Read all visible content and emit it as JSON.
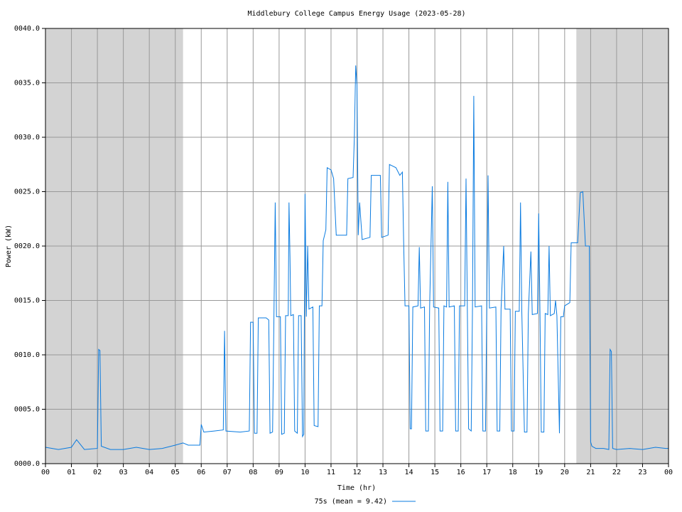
{
  "chart_data": {
    "type": "line",
    "title": "Middlebury College Campus Energy Usage (2023-05-28)",
    "xlabel": "Time (hr)",
    "ylabel": "Power (kW)",
    "xlim": [
      0,
      24
    ],
    "ylim": [
      0,
      40
    ],
    "xticks": [
      {
        "value": 0,
        "label": "00"
      },
      {
        "value": 1,
        "label": "01"
      },
      {
        "value": 2,
        "label": "02"
      },
      {
        "value": 3,
        "label": "03"
      },
      {
        "value": 4,
        "label": "04"
      },
      {
        "value": 5,
        "label": "05"
      },
      {
        "value": 6,
        "label": "06"
      },
      {
        "value": 7,
        "label": "07"
      },
      {
        "value": 8,
        "label": "08"
      },
      {
        "value": 9,
        "label": "09"
      },
      10,
      11,
      12,
      13,
      14,
      15,
      16,
      17,
      18,
      19,
      20,
      21,
      22,
      23,
      {
        "value": 24,
        "label": "00"
      }
    ],
    "yticks": [
      {
        "value": 0,
        "label": "0000.0"
      },
      {
        "value": 5,
        "label": "0005.0"
      },
      {
        "value": 10,
        "label": "0010.0"
      },
      {
        "value": 15,
        "label": "0015.0"
      },
      {
        "value": 20,
        "label": "0020.0"
      },
      {
        "value": 25,
        "label": "0025.0"
      },
      {
        "value": 30,
        "label": "0030.0"
      },
      {
        "value": 35,
        "label": "0035.0"
      },
      {
        "value": 40,
        "label": "0040.0"
      }
    ],
    "grid": true,
    "shaded_regions": [
      [
        0,
        5.3
      ],
      [
        20.45,
        24
      ]
    ],
    "shade_color": "#d3d3d3",
    "legend": "bottom",
    "x": [
      0,
      0.5,
      1.0,
      1.2,
      1.5,
      2.0,
      2.05,
      2.1,
      2.15,
      2.5,
      3,
      3.5,
      4,
      4.5,
      5,
      5.3,
      5.5,
      5.95,
      6.0,
      6.1,
      6.5,
      6.85,
      6.9,
      6.95,
      7.5,
      7.85,
      7.9,
      8.0,
      8.05,
      8.15,
      8.2,
      8.5,
      8.6,
      8.65,
      8.75,
      8.8,
      8.85,
      8.9,
      9.05,
      9.1,
      9.2,
      9.25,
      9.35,
      9.38,
      9.42,
      9.45,
      9.55,
      9.6,
      9.7,
      9.75,
      9.85,
      9.9,
      9.95,
      10.0,
      10.05,
      10.1,
      10.15,
      10.3,
      10.35,
      10.5,
      10.55,
      10.65,
      10.7,
      10.8,
      10.85,
      11.0,
      11.1,
      11.2,
      11.6,
      11.65,
      11.85,
      11.9,
      11.95,
      12.0,
      12.05,
      12.1,
      12.2,
      12.5,
      12.55,
      12.9,
      12.95,
      13.2,
      13.25,
      13.5,
      13.65,
      13.75,
      13.8,
      13.85,
      14.0,
      14.05,
      14.1,
      14.15,
      14.35,
      14.4,
      14.45,
      14.6,
      14.65,
      14.75,
      14.8,
      14.9,
      14.95,
      15.15,
      15.2,
      15.3,
      15.35,
      15.45,
      15.5,
      15.55,
      15.75,
      15.8,
      15.9,
      15.95,
      16.15,
      16.2,
      16.25,
      16.3,
      16.4,
      16.45,
      16.5,
      16.55,
      16.8,
      16.85,
      16.95,
      17.0,
      17.05,
      17.1,
      17.35,
      17.4,
      17.5,
      17.55,
      17.65,
      17.7,
      17.9,
      17.95,
      18.05,
      18.1,
      18.25,
      18.3,
      18.35,
      18.45,
      18.55,
      18.6,
      18.7,
      18.75,
      18.95,
      19.0,
      19.05,
      19.1,
      19.2,
      19.25,
      19.35,
      19.4,
      19.45,
      19.6,
      19.65,
      19.7,
      19.8,
      19.85,
      19.95,
      20.0,
      20.2,
      20.25,
      20.5,
      20.6,
      20.7,
      20.8,
      20.95,
      21.0,
      21.05,
      21.2,
      21.5,
      21.7,
      21.75,
      21.8,
      21.85,
      22.0,
      22.5,
      23,
      23.5,
      23.9,
      24
    ],
    "series": [
      {
        "name": "75s (mean = 9.42)",
        "color": "#0a7be0",
        "values": [
          1.5,
          1.3,
          1.5,
          2.2,
          1.3,
          1.4,
          10.5,
          10.4,
          1.6,
          1.3,
          1.3,
          1.5,
          1.3,
          1.4,
          1.7,
          1.9,
          1.7,
          1.7,
          3.6,
          2.9,
          3.0,
          3.1,
          12.2,
          3.0,
          2.9,
          3.0,
          13.0,
          13.0,
          2.8,
          2.8,
          13.4,
          13.4,
          13.2,
          2.8,
          2.9,
          13.5,
          24.0,
          13.5,
          13.5,
          2.7,
          2.8,
          13.6,
          13.6,
          24.0,
          19.0,
          13.6,
          13.7,
          3.0,
          2.8,
          13.6,
          13.6,
          2.5,
          2.7,
          24.8,
          13.5,
          20.0,
          14.2,
          14.4,
          3.5,
          3.4,
          14.5,
          14.5,
          20.5,
          21.5,
          27.2,
          27.0,
          26.2,
          21.0,
          21.0,
          26.2,
          26.3,
          30.0,
          36.6,
          34.8,
          21.0,
          24.0,
          20.6,
          20.8,
          26.5,
          26.5,
          20.8,
          21.0,
          27.5,
          27.2,
          26.5,
          26.8,
          20.0,
          14.5,
          14.5,
          3.2,
          3.2,
          14.4,
          14.5,
          19.9,
          14.3,
          14.4,
          3.0,
          3.0,
          14.5,
          25.5,
          14.4,
          14.3,
          3.0,
          3.0,
          14.5,
          14.4,
          25.9,
          14.4,
          14.5,
          3.0,
          3.0,
          14.5,
          14.5,
          26.2,
          14.5,
          3.2,
          3.0,
          14.5,
          33.8,
          14.4,
          14.5,
          3.0,
          3.0,
          14.4,
          26.5,
          14.3,
          14.4,
          3.0,
          3.0,
          14.2,
          20.0,
          14.2,
          14.2,
          3.0,
          3.0,
          14.0,
          14.0,
          24.0,
          14.0,
          2.9,
          2.9,
          13.8,
          19.5,
          13.7,
          13.8,
          23.0,
          13.8,
          2.9,
          2.9,
          13.8,
          13.7,
          20.0,
          13.6,
          13.8,
          15.0,
          13.6,
          2.8,
          13.5,
          13.5,
          14.5,
          14.8,
          20.3,
          20.3,
          24.9,
          25.0,
          20.0,
          20.0,
          2.0,
          1.6,
          1.4,
          1.4,
          1.3,
          10.5,
          10.3,
          1.4,
          1.3,
          1.4,
          1.3,
          1.5,
          1.4,
          1.4
        ]
      }
    ]
  }
}
